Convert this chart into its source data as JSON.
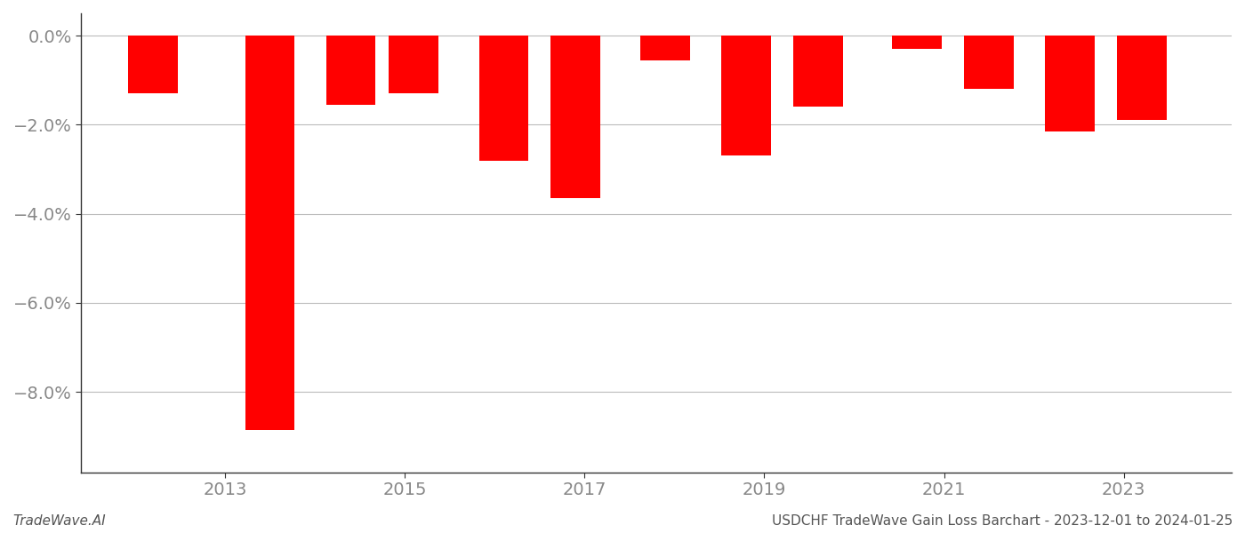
{
  "bars": [
    {
      "year": 2012.2,
      "value": -1.3
    },
    {
      "year": 2013.5,
      "value": -8.85
    },
    {
      "year": 2014.4,
      "value": -1.55
    },
    {
      "year": 2015.1,
      "value": -1.3
    },
    {
      "year": 2016.1,
      "value": -2.8
    },
    {
      "year": 2016.9,
      "value": -3.65
    },
    {
      "year": 2017.9,
      "value": -0.55
    },
    {
      "year": 2018.8,
      "value": -2.7
    },
    {
      "year": 2019.6,
      "value": -1.6
    },
    {
      "year": 2020.7,
      "value": -0.3
    },
    {
      "year": 2021.5,
      "value": -1.2
    },
    {
      "year": 2022.4,
      "value": -2.15
    },
    {
      "year": 2023.2,
      "value": -1.9
    }
  ],
  "bar_color": "#ff0000",
  "bar_width": 0.55,
  "ylim": [
    -9.8,
    0.5
  ],
  "yticks": [
    0.0,
    -2.0,
    -4.0,
    -6.0,
    -8.0
  ],
  "ytick_labels": [
    "0.0%",
    "−2.0%",
    "−4.0%",
    "−6.0%",
    "−8.0%"
  ],
  "xticks": [
    2013,
    2015,
    2017,
    2019,
    2021,
    2023
  ],
  "xlim": [
    2011.4,
    2024.2
  ],
  "grid_color": "#bbbbbb",
  "bg_color": "#ffffff",
  "tick_color": "#888888",
  "footer_left": "TradeWave.AI",
  "footer_right": "USDCHF TradeWave Gain Loss Barchart - 2023-12-01 to 2024-01-25",
  "footer_fontsize": 11,
  "spine_color": "#333333"
}
